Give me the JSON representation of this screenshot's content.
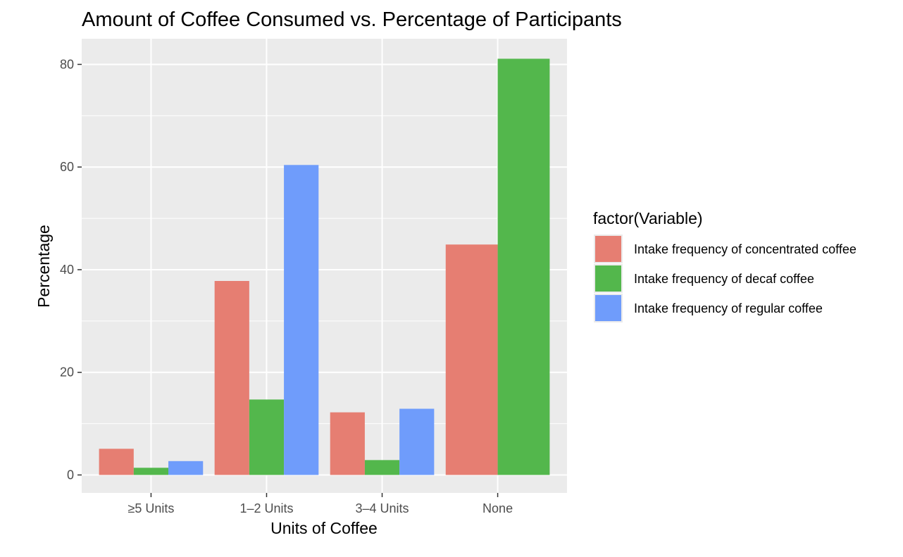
{
  "chart_data": {
    "type": "bar",
    "title": "Amount of Coffee Consumed vs. Percentage of Participants",
    "xlabel": "Units of Coffee",
    "ylabel": "Percentage",
    "categories": [
      "≥5 Units",
      "1–2 Units",
      "3–4 Units",
      "None"
    ],
    "ylim": [
      -3.5,
      85
    ],
    "yticks": [
      0,
      20,
      40,
      60,
      80
    ],
    "grid": true,
    "legend": {
      "title": "factor(Variable)",
      "position": "right"
    },
    "series": [
      {
        "name": "Intake frequency of concentrated coffee",
        "color": "#E67E72",
        "values": [
          5.1,
          37.8,
          12.2,
          44.9
        ]
      },
      {
        "name": "Intake frequency of decaf coffee",
        "color": "#53B74C",
        "values": [
          1.4,
          14.7,
          2.9,
          81.1
        ]
      },
      {
        "name": "Intake frequency of regular coffee",
        "color": "#6F9CFB",
        "values": [
          2.7,
          60.4,
          12.9,
          null
        ]
      }
    ]
  }
}
